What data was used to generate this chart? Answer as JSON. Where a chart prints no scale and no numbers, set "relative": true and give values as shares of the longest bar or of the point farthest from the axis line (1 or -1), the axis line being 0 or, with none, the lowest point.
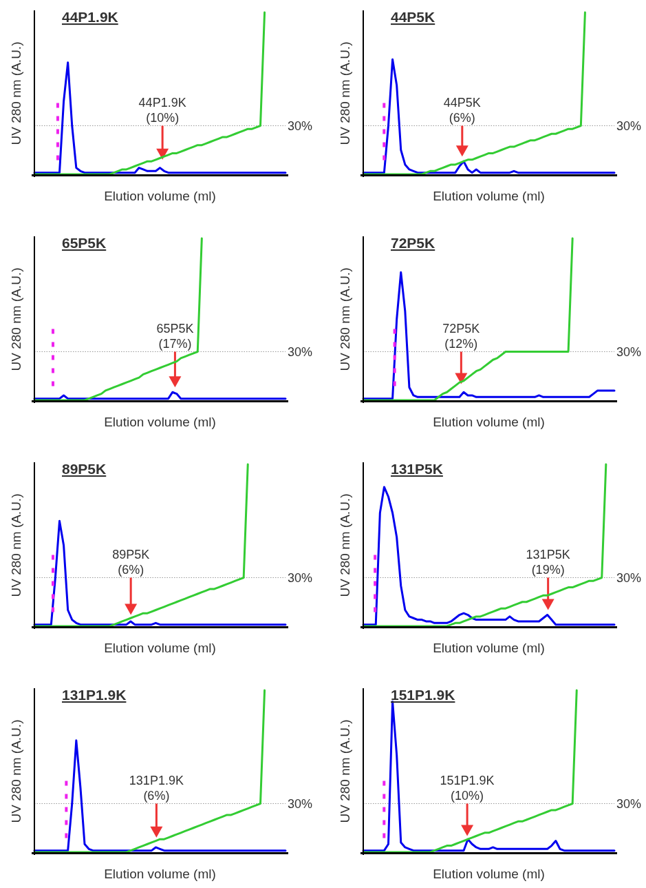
{
  "chart_data": [
    {
      "type": "line",
      "title": "44P1.9K",
      "xlabel": "Elution volume (ml)",
      "ylabel": "UV 280 nm (A.U.)",
      "relative": true,
      "categories": [
        null,
        null,
        null,
        null,
        null,
        null,
        null,
        null,
        null,
        null,
        null,
        null,
        null,
        null,
        null,
        null,
        null,
        null,
        null,
        null,
        null,
        null,
        null,
        null,
        null,
        null,
        null,
        null,
        null,
        null,
        null,
        null,
        null,
        null,
        null,
        null,
        null,
        null,
        null,
        null,
        null,
        null,
        null,
        null,
        null,
        null,
        null,
        null,
        null,
        null,
        null,
        null,
        null,
        null,
        null,
        null,
        null,
        null,
        null,
        null,
        null
      ],
      "series": [
        {
          "color": "#0000ee",
          "values": [
            0.01,
            0.01,
            0.01,
            0.01,
            0.01,
            0.01,
            0.01,
            0.45,
            0.69,
            0.3,
            0.04,
            0.02,
            0.01,
            0.01,
            0.01,
            0.01,
            0.01,
            0.01,
            0.01,
            0.01,
            0.01,
            0.01,
            0.01,
            0.01,
            0.01,
            0.04,
            0.03,
            0.02,
            0.02,
            0.02,
            0.04,
            0.02,
            0.01,
            0.01,
            0.01,
            0.01,
            0.01,
            0.01,
            0.01,
            0.01,
            0.01,
            0.01,
            0.01,
            0.01,
            0.01,
            0.01,
            0.01,
            0.01,
            0.01,
            0.01,
            0.01,
            0.01,
            0.01,
            0.01,
            0.01,
            0.01,
            0.01,
            0.01,
            0.01,
            0.01,
            0.01
          ]
        },
        {
          "color": "#33cc33",
          "values": [
            0,
            0,
            0,
            0,
            0,
            0,
            0,
            0,
            0,
            0,
            0,
            0,
            0,
            0,
            0,
            0,
            0,
            0,
            0,
            0.01,
            0.02,
            0.03,
            0.03,
            0.04,
            0.05,
            0.06,
            0.07,
            0.08,
            0.08,
            0.09,
            0.1,
            0.11,
            0.12,
            0.13,
            0.13,
            0.14,
            0.15,
            0.16,
            0.17,
            0.18,
            0.18,
            0.19,
            0.2,
            0.21,
            0.22,
            0.23,
            0.23,
            0.24,
            0.25,
            0.26,
            0.27,
            0.28,
            0.28,
            0.29,
            0.3,
            1,
            null,
            null,
            null,
            null,
            null
          ]
        }
      ],
      "ref_lines": [
        {
          "axis": "y",
          "value": 0.3,
          "label": "30%",
          "color": "#999999",
          "line_style": "dotted"
        }
      ],
      "annotations": [
        "44P1.9K\n(10%)"
      ]
    },
    {
      "type": "line",
      "title": "44P5K",
      "xlabel": "Elution volume (ml)",
      "ylabel": "UV 280 nm (A.U.)",
      "relative": true,
      "categories": [
        null,
        null,
        null,
        null,
        null,
        null,
        null,
        null,
        null,
        null,
        null,
        null,
        null,
        null,
        null,
        null,
        null,
        null,
        null,
        null,
        null,
        null,
        null,
        null,
        null,
        null,
        null,
        null,
        null,
        null,
        null,
        null,
        null,
        null,
        null,
        null,
        null,
        null,
        null,
        null,
        null,
        null,
        null,
        null,
        null,
        null,
        null,
        null,
        null,
        null,
        null,
        null,
        null,
        null,
        null,
        null,
        null,
        null,
        null,
        null,
        null
      ],
      "series": [
        {
          "color": "#0000ee",
          "values": [
            0.01,
            0.01,
            0.01,
            0.01,
            0.01,
            0.01,
            0.3,
            0.71,
            0.55,
            0.15,
            0.06,
            0.03,
            0.02,
            0.01,
            0.01,
            0.01,
            0.01,
            0.01,
            0.01,
            0.01,
            0.01,
            0.01,
            0.01,
            0.05,
            0.08,
            0.03,
            0.01,
            0.03,
            0.01,
            0.01,
            0.01,
            0.01,
            0.01,
            0.01,
            0.01,
            0.01,
            0.02,
            0.01,
            0.01,
            0.01,
            0.01,
            0.01,
            0.01,
            0.01,
            0.01,
            0.01,
            0.01,
            0.01,
            0.01,
            0.01,
            0.01,
            0.01,
            0.01,
            0.01,
            0.01,
            0.01,
            0.01,
            0.01,
            0.01,
            0.01,
            0.01
          ]
        },
        {
          "color": "#33cc33",
          "values": [
            0,
            0,
            0,
            0,
            0,
            0,
            0,
            0,
            0,
            0,
            0,
            0,
            0,
            0,
            0,
            0.01,
            0.02,
            0.02,
            0.03,
            0.04,
            0.05,
            0.06,
            0.06,
            0.07,
            0.08,
            0.09,
            0.09,
            0.1,
            0.11,
            0.12,
            0.13,
            0.13,
            0.14,
            0.15,
            0.16,
            0.17,
            0.17,
            0.18,
            0.19,
            0.2,
            0.21,
            0.21,
            0.22,
            0.23,
            0.24,
            0.25,
            0.25,
            0.26,
            0.27,
            0.28,
            0.28,
            0.29,
            0.3,
            1,
            null,
            null,
            null,
            null,
            null,
            null,
            null
          ]
        }
      ],
      "ref_lines": [
        {
          "axis": "y",
          "value": 0.3,
          "label": "30%",
          "color": "#999999",
          "line_style": "dotted"
        }
      ],
      "annotations": [
        "44P5K\n(6%)"
      ]
    },
    {
      "type": "line",
      "title": "65P5K",
      "xlabel": "Elution volume (ml)",
      "ylabel": "UV 280 nm (A.U.)",
      "relative": true,
      "categories": [
        null,
        null,
        null,
        null,
        null,
        null,
        null,
        null,
        null,
        null,
        null,
        null,
        null,
        null,
        null,
        null,
        null,
        null,
        null,
        null,
        null,
        null,
        null,
        null,
        null,
        null,
        null,
        null,
        null,
        null,
        null,
        null,
        null,
        null,
        null,
        null,
        null,
        null,
        null,
        null,
        null,
        null,
        null,
        null,
        null,
        null,
        null,
        null,
        null,
        null,
        null,
        null,
        null,
        null,
        null,
        null,
        null,
        null,
        null,
        null,
        null
      ],
      "series": [
        {
          "color": "#0000ee",
          "values": [
            0.01,
            0.01,
            0.01,
            0.01,
            0.01,
            0.01,
            0.01,
            0.03,
            0.01,
            0.01,
            0.01,
            0.01,
            0.01,
            0.01,
            0.01,
            0.01,
            0.01,
            0.01,
            0.01,
            0.01,
            0.01,
            0.01,
            0.01,
            0.01,
            0.01,
            0.01,
            0.01,
            0.01,
            0.01,
            0.01,
            0.01,
            0.01,
            0.01,
            0.05,
            0.04,
            0.01,
            0.01,
            0.01,
            0.01,
            0.01,
            0.01,
            0.01,
            0.01,
            0.01,
            0.01,
            0.01,
            0.01,
            0.01,
            0.01,
            0.01,
            0.01,
            0.01,
            0.01,
            0.01,
            0.01,
            0.01,
            0.01,
            0.01,
            0.01,
            0.01,
            0.01
          ]
        },
        {
          "color": "#33cc33",
          "values": [
            0,
            0,
            0,
            0,
            0,
            0,
            0,
            0,
            0,
            0,
            0,
            0,
            0,
            0.01,
            0.02,
            0.03,
            0.04,
            0.06,
            0.07,
            0.08,
            0.09,
            0.1,
            0.11,
            0.12,
            0.13,
            0.14,
            0.16,
            0.17,
            0.18,
            0.19,
            0.2,
            0.21,
            0.22,
            0.23,
            0.24,
            0.26,
            0.27,
            0.28,
            0.29,
            0.3,
            1,
            null,
            null,
            null,
            null,
            null,
            null,
            null,
            null,
            null,
            null,
            null,
            null,
            null,
            null,
            null,
            null,
            null,
            null,
            null,
            null
          ]
        }
      ],
      "ref_lines": [
        {
          "axis": "y",
          "value": 0.3,
          "label": "30%",
          "color": "#999999",
          "line_style": "dotted"
        }
      ],
      "annotations": [
        "65P5K\n(17%)"
      ]
    },
    {
      "type": "line",
      "title": "72P5K",
      "xlabel": "Elution volume (ml)",
      "ylabel": "UV 280 nm (A.U.)",
      "relative": true,
      "categories": [
        null,
        null,
        null,
        null,
        null,
        null,
        null,
        null,
        null,
        null,
        null,
        null,
        null,
        null,
        null,
        null,
        null,
        null,
        null,
        null,
        null,
        null,
        null,
        null,
        null,
        null,
        null,
        null,
        null,
        null,
        null,
        null,
        null,
        null,
        null,
        null,
        null,
        null,
        null,
        null,
        null,
        null,
        null,
        null,
        null,
        null,
        null,
        null,
        null,
        null,
        null,
        null,
        null,
        null,
        null,
        null,
        null,
        null,
        null,
        null,
        null
      ],
      "series": [
        {
          "color": "#0000ee",
          "values": [
            0.01,
            0.01,
            0.01,
            0.01,
            0.01,
            0.01,
            0.01,
            0.01,
            0.5,
            0.79,
            0.55,
            0.08,
            0.03,
            0.02,
            0.02,
            0.02,
            0.02,
            0.02,
            0.02,
            0.02,
            0.02,
            0.02,
            0.02,
            0.02,
            0.05,
            0.03,
            0.03,
            0.02,
            0.02,
            0.02,
            0.02,
            0.02,
            0.02,
            0.02,
            0.02,
            0.02,
            0.02,
            0.02,
            0.02,
            0.02,
            0.02,
            0.02,
            0.03,
            0.02,
            0.02,
            0.02,
            0.02,
            0.02,
            0.02,
            0.02,
            0.02,
            0.02,
            0.02,
            0.02,
            0.02,
            0.04,
            0.06,
            0.06,
            0.06,
            0.06,
            0.06
          ]
        },
        {
          "color": "#33cc33",
          "values": [
            0,
            0,
            0,
            0,
            0,
            0,
            0,
            0,
            0,
            0,
            0,
            0,
            0,
            0,
            0,
            0,
            0,
            0,
            0.02,
            0.04,
            0.05,
            0.07,
            0.09,
            0.11,
            0.12,
            0.14,
            0.16,
            0.18,
            0.19,
            0.21,
            0.23,
            0.25,
            0.26,
            0.28,
            0.3,
            0.3,
            0.3,
            0.3,
            0.3,
            0.3,
            0.3,
            0.3,
            0.3,
            0.3,
            0.3,
            0.3,
            0.3,
            0.3,
            0.3,
            0.3,
            1,
            null,
            null,
            null,
            null,
            null,
            null,
            null,
            null,
            null,
            null
          ]
        }
      ],
      "ref_lines": [
        {
          "axis": "y",
          "value": 0.3,
          "label": "30%",
          "color": "#999999",
          "line_style": "dotted"
        }
      ],
      "annotations": [
        "72P5K\n(12%)"
      ]
    },
    {
      "type": "line",
      "title": "89P5K",
      "xlabel": "Elution volume (ml)",
      "ylabel": "UV 280 nm (A.U.)",
      "relative": true,
      "categories": [
        null,
        null,
        null,
        null,
        null,
        null,
        null,
        null,
        null,
        null,
        null,
        null,
        null,
        null,
        null,
        null,
        null,
        null,
        null,
        null,
        null,
        null,
        null,
        null,
        null,
        null,
        null,
        null,
        null,
        null,
        null,
        null,
        null,
        null,
        null,
        null,
        null,
        null,
        null,
        null,
        null,
        null,
        null,
        null,
        null,
        null,
        null,
        null,
        null,
        null,
        null,
        null,
        null,
        null,
        null,
        null,
        null,
        null,
        null,
        null,
        null
      ],
      "series": [
        {
          "color": "#0000ee",
          "values": [
            0.01,
            0.01,
            0.01,
            0.01,
            0.01,
            0.3,
            0.65,
            0.5,
            0.1,
            0.04,
            0.02,
            0.01,
            0.01,
            0.01,
            0.01,
            0.01,
            0.01,
            0.01,
            0.01,
            0.01,
            0.01,
            0.01,
            0.01,
            0.03,
            0.01,
            0.01,
            0.01,
            0.01,
            0.01,
            0.02,
            0.01,
            0.01,
            0.01,
            0.01,
            0.01,
            0.01,
            0.01,
            0.01,
            0.01,
            0.01,
            0.01,
            0.01,
            0.01,
            0.01,
            0.01,
            0.01,
            0.01,
            0.01,
            0.01,
            0.01,
            0.01,
            0.01,
            0.01,
            0.01,
            0.01,
            0.01,
            0.01,
            0.01,
            0.01,
            0.01,
            0.01
          ]
        },
        {
          "color": "#33cc33",
          "values": [
            0,
            0,
            0,
            0,
            0,
            0,
            0,
            0,
            0,
            0,
            0,
            0,
            0,
            0,
            0,
            0,
            0,
            0,
            0,
            0.01,
            0.02,
            0.03,
            0.04,
            0.05,
            0.06,
            0.07,
            0.08,
            0.08,
            0.09,
            0.1,
            0.11,
            0.12,
            0.13,
            0.14,
            0.15,
            0.16,
            0.17,
            0.18,
            0.19,
            0.2,
            0.21,
            0.22,
            0.23,
            0.23,
            0.24,
            0.25,
            0.26,
            0.27,
            0.28,
            0.29,
            0.3,
            1,
            null,
            null,
            null,
            null,
            null,
            null,
            null,
            null,
            null
          ]
        }
      ],
      "ref_lines": [
        {
          "axis": "y",
          "value": 0.3,
          "label": "30%",
          "color": "#999999",
          "line_style": "dotted"
        }
      ],
      "annotations": [
        "89P5K\n(6%)"
      ]
    },
    {
      "type": "line",
      "title": "131P5K",
      "xlabel": "Elution volume (ml)",
      "ylabel": "UV 280 nm (A.U.)",
      "relative": true,
      "categories": [
        null,
        null,
        null,
        null,
        null,
        null,
        null,
        null,
        null,
        null,
        null,
        null,
        null,
        null,
        null,
        null,
        null,
        null,
        null,
        null,
        null,
        null,
        null,
        null,
        null,
        null,
        null,
        null,
        null,
        null,
        null,
        null,
        null,
        null,
        null,
        null,
        null,
        null,
        null,
        null,
        null,
        null,
        null,
        null,
        null,
        null,
        null,
        null,
        null,
        null,
        null,
        null,
        null,
        null,
        null,
        null,
        null,
        null,
        null,
        null,
        null
      ],
      "series": [
        {
          "color": "#0000ee",
          "values": [
            0.01,
            0.01,
            0.01,
            0.01,
            0.7,
            0.86,
            0.8,
            0.7,
            0.55,
            0.25,
            0.1,
            0.06,
            0.05,
            0.04,
            0.04,
            0.03,
            0.03,
            0.02,
            0.02,
            0.02,
            0.02,
            0.03,
            0.05,
            0.07,
            0.08,
            0.07,
            0.05,
            0.04,
            0.04,
            0.04,
            0.04,
            0.04,
            0.04,
            0.04,
            0.04,
            0.06,
            0.04,
            0.03,
            0.03,
            0.03,
            0.03,
            0.03,
            0.03,
            0.05,
            0.07,
            0.04,
            0.01,
            0.01,
            0.01,
            0.01,
            0.01,
            0.01,
            0.01,
            0.01,
            0.01,
            0.01,
            0.01,
            0.01,
            0.01,
            0.01,
            0.01
          ]
        },
        {
          "color": "#33cc33",
          "values": [
            0,
            0,
            0,
            0,
            0,
            0,
            0,
            0,
            0,
            0,
            0,
            0,
            0,
            0,
            0,
            0,
            0,
            0,
            0,
            0,
            0,
            0.01,
            0.02,
            0.02,
            0.03,
            0.04,
            0.05,
            0.06,
            0.06,
            0.07,
            0.08,
            0.09,
            0.1,
            0.11,
            0.11,
            0.12,
            0.13,
            0.14,
            0.15,
            0.15,
            0.16,
            0.17,
            0.18,
            0.19,
            0.19,
            0.2,
            0.21,
            0.22,
            0.23,
            0.24,
            0.24,
            0.25,
            0.26,
            0.27,
            0.28,
            0.28,
            0.29,
            0.3,
            1,
            null,
            null
          ]
        }
      ],
      "ref_lines": [
        {
          "axis": "y",
          "value": 0.3,
          "label": "30%",
          "color": "#999999",
          "line_style": "dotted"
        }
      ],
      "annotations": [
        "131P5K\n(19%)"
      ]
    },
    {
      "type": "line",
      "title": "131P1.9K",
      "xlabel": "Elution volume (ml)",
      "ylabel": "UV 280 nm (A.U.)",
      "relative": true,
      "categories": [
        null,
        null,
        null,
        null,
        null,
        null,
        null,
        null,
        null,
        null,
        null,
        null,
        null,
        null,
        null,
        null,
        null,
        null,
        null,
        null,
        null,
        null,
        null,
        null,
        null,
        null,
        null,
        null,
        null,
        null,
        null,
        null,
        null,
        null,
        null,
        null,
        null,
        null,
        null,
        null,
        null,
        null,
        null,
        null,
        null,
        null,
        null,
        null,
        null,
        null,
        null,
        null,
        null,
        null,
        null,
        null,
        null,
        null,
        null,
        null,
        null
      ],
      "series": [
        {
          "color": "#0000ee",
          "values": [
            0.01,
            0.01,
            0.01,
            0.01,
            0.01,
            0.01,
            0.01,
            0.01,
            0.01,
            0.3,
            0.69,
            0.4,
            0.05,
            0.02,
            0.01,
            0.01,
            0.01,
            0.01,
            0.01,
            0.01,
            0.01,
            0.01,
            0.01,
            0.01,
            0.01,
            0.01,
            0.01,
            0.01,
            0.01,
            0.03,
            0.02,
            0.01,
            0.01,
            0.01,
            0.01,
            0.01,
            0.01,
            0.01,
            0.01,
            0.01,
            0.01,
            0.01,
            0.01,
            0.01,
            0.01,
            0.01,
            0.01,
            0.01,
            0.01,
            0.01,
            0.01,
            0.01,
            0.01,
            0.01,
            0.01,
            0.01,
            0.01,
            0.01,
            0.01,
            0.01,
            0.01
          ]
        },
        {
          "color": "#33cc33",
          "values": [
            0,
            0,
            0,
            0,
            0,
            0,
            0,
            0,
            0,
            0,
            0,
            0,
            0,
            0,
            0,
            0,
            0,
            0,
            0,
            0,
            0,
            0,
            0,
            0.01,
            0.02,
            0.03,
            0.04,
            0.05,
            0.06,
            0.07,
            0.08,
            0.08,
            0.09,
            0.1,
            0.11,
            0.12,
            0.13,
            0.14,
            0.15,
            0.16,
            0.17,
            0.18,
            0.19,
            0.2,
            0.21,
            0.22,
            0.23,
            0.23,
            0.24,
            0.25,
            0.26,
            0.27,
            0.28,
            0.29,
            0.3,
            1,
            null,
            null,
            null,
            null,
            null
          ]
        }
      ],
      "ref_lines": [
        {
          "axis": "y",
          "value": 0.3,
          "label": "30%",
          "color": "#999999",
          "line_style": "dotted"
        }
      ],
      "annotations": [
        "131P1.9K\n(6%)"
      ]
    },
    {
      "type": "line",
      "title": "151P1.9K",
      "xlabel": "Elution volume (ml)",
      "ylabel": "UV 280 nm (A.U.)",
      "relative": true,
      "categories": [
        null,
        null,
        null,
        null,
        null,
        null,
        null,
        null,
        null,
        null,
        null,
        null,
        null,
        null,
        null,
        null,
        null,
        null,
        null,
        null,
        null,
        null,
        null,
        null,
        null,
        null,
        null,
        null,
        null,
        null,
        null,
        null,
        null,
        null,
        null,
        null,
        null,
        null,
        null,
        null,
        null,
        null,
        null,
        null,
        null,
        null,
        null,
        null,
        null,
        null,
        null,
        null,
        null,
        null,
        null,
        null,
        null,
        null,
        null,
        null,
        null
      ],
      "series": [
        {
          "color": "#0000ee",
          "values": [
            0.01,
            0.01,
            0.01,
            0.01,
            0.01,
            0.01,
            0.05,
            0.93,
            0.6,
            0.06,
            0.03,
            0.02,
            0.01,
            0.01,
            0.01,
            0.01,
            0.01,
            0.01,
            0.01,
            0.01,
            0.01,
            0.01,
            0.01,
            0.01,
            0.01,
            0.08,
            0.05,
            0.03,
            0.02,
            0.02,
            0.02,
            0.03,
            0.02,
            0.02,
            0.02,
            0.02,
            0.02,
            0.02,
            0.02,
            0.02,
            0.02,
            0.02,
            0.02,
            0.02,
            0.02,
            0.04,
            0.07,
            0.02,
            0.01,
            0.01,
            0.01,
            0.01,
            0.01,
            0.01,
            0.01,
            0.01,
            0.01,
            0.01,
            0.01,
            0.01,
            0.01
          ]
        },
        {
          "color": "#33cc33",
          "values": [
            0,
            0,
            0,
            0,
            0,
            0,
            0,
            0,
            0,
            0,
            0,
            0,
            0,
            0,
            0,
            0,
            0,
            0.01,
            0.02,
            0.03,
            0.04,
            0.04,
            0.05,
            0.06,
            0.07,
            0.08,
            0.09,
            0.1,
            0.11,
            0.12,
            0.12,
            0.13,
            0.14,
            0.15,
            0.16,
            0.17,
            0.18,
            0.19,
            0.19,
            0.2,
            0.21,
            0.22,
            0.23,
            0.24,
            0.25,
            0.26,
            0.26,
            0.27,
            0.28,
            0.29,
            0.3,
            1,
            null,
            null,
            null,
            null,
            null,
            null,
            null,
            null,
            null
          ]
        }
      ],
      "ref_lines": [
        {
          "axis": "y",
          "value": 0.3,
          "label": "30%",
          "color": "#999999",
          "line_style": "dotted"
        }
      ],
      "annotations": [
        "151P1.9K\n(10%)"
      ]
    }
  ]
}
